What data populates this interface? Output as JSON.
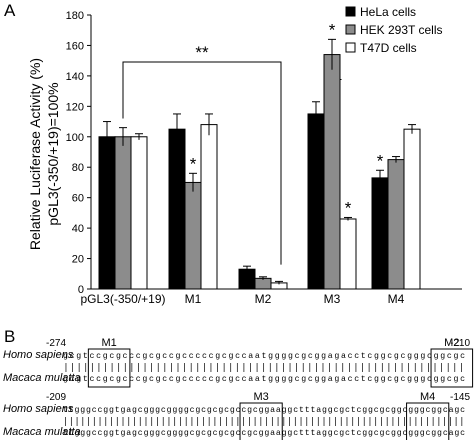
{
  "chart_data": {
    "type": "bar",
    "panel_label": "A",
    "ylabel_lines": [
      "Relative Luciferase Activity (%)",
      "pGL3(-350/+19)=100%"
    ],
    "ylim": [
      0,
      180
    ],
    "yticks": [
      "0",
      "20",
      "40",
      "60",
      "80",
      "100",
      "120",
      "140",
      "160",
      "180"
    ],
    "categories": [
      "pGL3(-350/+19)",
      "M1",
      "M2",
      "M3",
      "M4"
    ],
    "series": [
      {
        "name": "HeLa cells",
        "color": "#000000",
        "values": [
          100,
          105,
          13,
          115,
          73
        ],
        "errors": [
          10,
          10,
          2,
          8,
          5
        ]
      },
      {
        "name": "HEK 293T cells",
        "color": "#8c8c8c",
        "values": [
          100,
          70,
          7,
          154,
          85
        ],
        "errors": [
          6,
          6,
          1,
          10,
          2
        ]
      },
      {
        "name": "T47D cells",
        "color": "#ffffff",
        "values": [
          100,
          108,
          4,
          46,
          105
        ],
        "errors": [
          2,
          7,
          1,
          1,
          3
        ]
      }
    ],
    "significance": [
      {
        "text": "*",
        "category": 1,
        "series": 1
      },
      {
        "text": "*",
        "category": 3,
        "series": 1
      },
      {
        "text": "*",
        "category": 3,
        "series": 2
      },
      {
        "text": "*",
        "category": 4,
        "series": 0
      },
      {
        "text": "**",
        "from_category": 0,
        "to_category": 2
      }
    ],
    "legend_position": "top-right",
    "grid": false
  },
  "panel_b": {
    "label": "B",
    "blocks": [
      {
        "start": "-274",
        "end": "-210",
        "motifs": [
          {
            "name": "M1"
          },
          {
            "name": "M2"
          }
        ],
        "rows": [
          {
            "species": "Homo sapiens",
            "sequence": "gcgtccgcgcccgcgccgcccccgcgccaatggggcgcggagacctcggcgcgggcggcgc"
          },
          {
            "species": "Macaca mulatta",
            "sequence": "gcgtccgcgcccgcgccgcccccgcgccaatggggcgcggagacctcggcgcgggcggcgc"
          }
        ]
      },
      {
        "start": "-209",
        "end": "-145",
        "motifs": [
          {
            "name": "M3"
          },
          {
            "name": "M4"
          }
        ],
        "rows": [
          {
            "species": "Homo sapiens",
            "sequence": "ttgggccggtgagcgggcggggcgcgcgcgccgcggaaggctttaggcgctcggcgcggcgggcggcagc"
          },
          {
            "species": "Macaca mulatta",
            "sequence": "ttgggccggtgagcgggcggggcgcgcgcgccgcggaaggctttaggcgctcggcgcggcgggcggcagc"
          }
        ]
      }
    ]
  }
}
